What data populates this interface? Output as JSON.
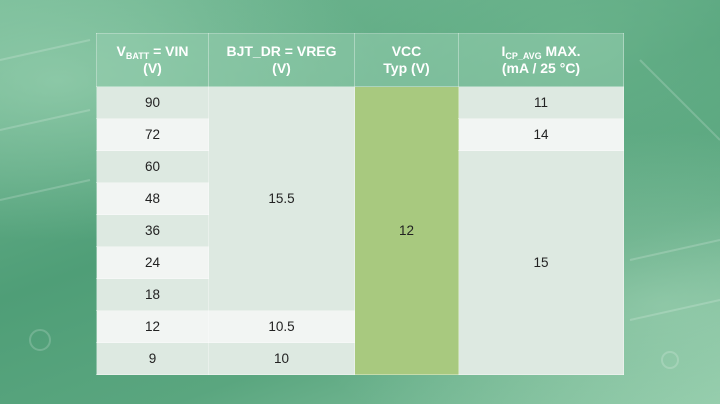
{
  "table": {
    "headers": {
      "vbatt": {
        "v": "V",
        "sub": "BATT",
        "rest": " = VIN",
        "unit": "(V)"
      },
      "bjt": {
        "line1": "BJT_DR = VREG",
        "unit": "(V)"
      },
      "vcc": {
        "line1": "VCC",
        "line2": "Typ (V)"
      },
      "icp": {
        "i": "I",
        "sub": "CP_AVG",
        "rest": " MAX.",
        "unit": "(mA / 25 °C)"
      }
    },
    "vin_values": [
      "90",
      "72",
      "60",
      "48",
      "36",
      "24",
      "18",
      "12",
      "9"
    ],
    "bjt_groups": [
      "15.5",
      "10.5",
      "10"
    ],
    "vcc_value": "12",
    "icp_groups": [
      "11",
      "14",
      "15"
    ]
  },
  "colors": {
    "header_bg": "#8fc9a9",
    "cell_light": "#f2f5f3",
    "cell_pale": "#dde9e1",
    "vcc_green": "#a8c97f",
    "background_green": "#5fa983"
  }
}
